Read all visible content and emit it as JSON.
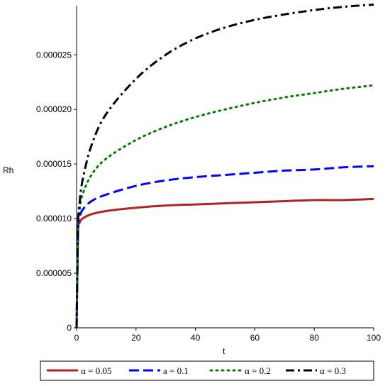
{
  "chart_data": {
    "type": "line",
    "xlabel": "t",
    "ylabel": "Rh",
    "xlim": [
      0,
      100
    ],
    "ylim": [
      0,
      2.95e-05
    ],
    "x_ticks": [
      0,
      20,
      40,
      60,
      80,
      100
    ],
    "x_tick_labels": [
      "0",
      "20",
      "40",
      "60",
      "80",
      "100"
    ],
    "y_ticks": [
      0,
      5e-06,
      1e-05,
      1.5e-05,
      2e-05,
      2.5e-05
    ],
    "y_tick_labels": [
      "0",
      "0.000005",
      "0.000010",
      "0.000015",
      "0.000020",
      "0.000025"
    ],
    "grid": false,
    "legend_position": "bottom",
    "x": [
      0,
      0.5,
      1,
      2,
      5,
      10,
      20,
      30,
      40,
      50,
      60,
      70,
      80,
      90,
      100
    ],
    "series": [
      {
        "name": "α = 0.05",
        "color": "#b22222",
        "dash": "solid",
        "values": [
          0,
          8.8e-06,
          9.6e-06,
          1e-05,
          1.04e-05,
          1.07e-05,
          1.1e-05,
          1.12e-05,
          1.13e-05,
          1.14e-05,
          1.15e-05,
          1.16e-05,
          1.17e-05,
          1.17e-05,
          1.18e-05
        ]
      },
      {
        "name": "a = 0.1",
        "color": "#0000ff",
        "dash": "dash",
        "values": [
          0,
          9e-06,
          1.01e-05,
          1.08e-05,
          1.16e-05,
          1.22e-05,
          1.3e-05,
          1.35e-05,
          1.38e-05,
          1.4e-05,
          1.42e-05,
          1.44e-05,
          1.45e-05,
          1.47e-05,
          1.48e-05
        ]
      },
      {
        "name": "α = 0.2",
        "color": "#008000",
        "dash": "dot",
        "values": [
          0,
          9.2e-06,
          1.08e-05,
          1.22e-05,
          1.4e-05,
          1.55e-05,
          1.72e-05,
          1.84e-05,
          1.93e-05,
          2e-05,
          2.06e-05,
          2.11e-05,
          2.15e-05,
          2.19e-05,
          2.22e-05
        ]
      },
      {
        "name": "α = 0.3",
        "color": "#000000",
        "dash": "dashdot",
        "values": [
          0,
          9.3e-06,
          1.14e-05,
          1.35e-05,
          1.67e-05,
          1.96e-05,
          2.28e-05,
          2.5e-05,
          2.65e-05,
          2.75e-05,
          2.82e-05,
          2.87e-05,
          2.91e-05,
          2.94e-05,
          2.96e-05
        ]
      }
    ]
  }
}
